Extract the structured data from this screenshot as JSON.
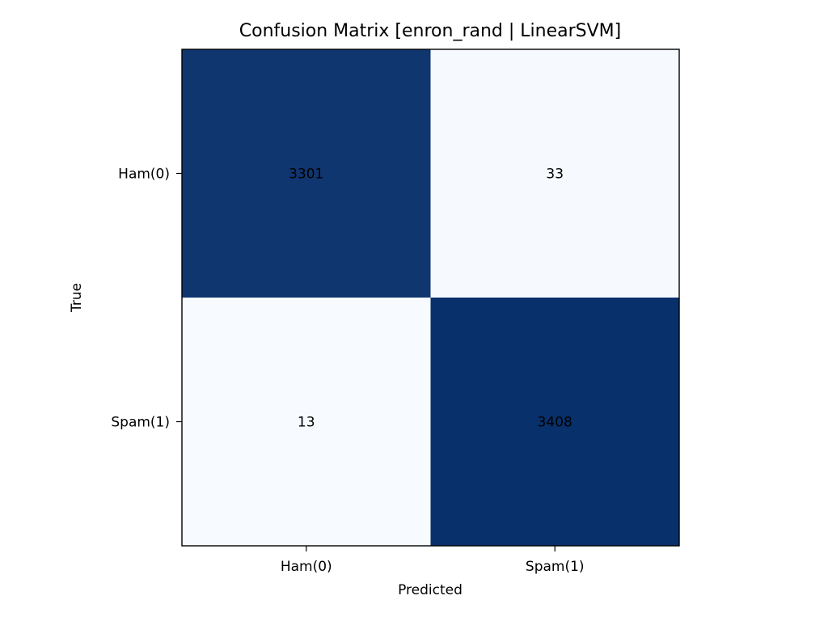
{
  "chart_data": {
    "type": "heatmap",
    "title": "Confusion Matrix [enron_rand | LinearSVM]",
    "xlabel": "Predicted",
    "ylabel": "True",
    "x_categories": [
      "Ham(0)",
      "Spam(1)"
    ],
    "y_categories": [
      "Ham(0)",
      "Spam(1)"
    ],
    "matrix": [
      [
        3301,
        33
      ],
      [
        13,
        3408
      ]
    ],
    "colormap": {
      "name": "Blues",
      "low_color": "#f7fbff",
      "high_color": "#08306b"
    },
    "text_color": "#000000",
    "grid": false,
    "legend": "none"
  }
}
